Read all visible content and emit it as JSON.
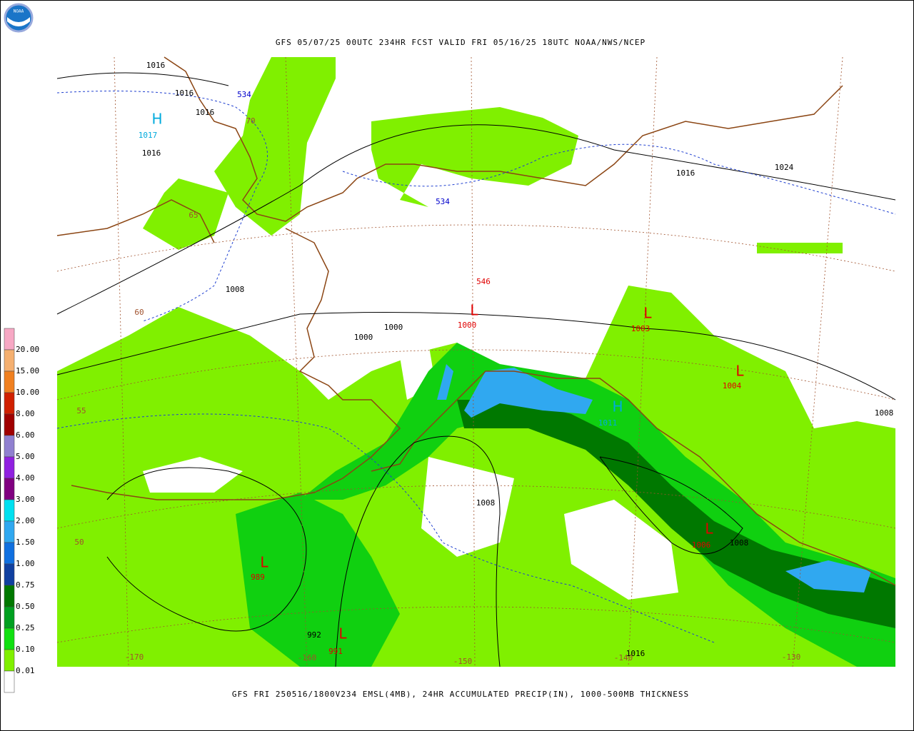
{
  "header": {
    "logo": "NOAA",
    "title": "GFS 05/07/25 00UTC 234HR FCST VALID FRI 05/16/25 18UTC NOAA/NWS/NCEP"
  },
  "legend": {
    "labels": [
      "20.00",
      "15.00",
      "10.00",
      "8.00",
      "6.00",
      "5.00",
      "4.00",
      "3.00",
      "2.00",
      "1.50",
      "1.00",
      "0.75",
      "0.50",
      "0.25",
      "0.10",
      "0.01"
    ],
    "colors": [
      "#f7a8c4",
      "#f5b070",
      "#f08020",
      "#d02000",
      "#a00000",
      "#9080d0",
      "#9020e0",
      "#800080",
      "#00e0f0",
      "#30a8f0",
      "#1070e0",
      "#1040a0",
      "#007800",
      "#00a020",
      "#10e010",
      "#80f000",
      "#ffffff"
    ]
  },
  "map": {
    "labels": [
      {
        "text": "1016",
        "color": "#000000"
      },
      {
        "text": "1016",
        "color": "#000000"
      },
      {
        "text": "1016",
        "color": "#000000"
      },
      {
        "text": "534",
        "color": "#0000cc"
      },
      {
        "text": "H",
        "color": "#00aadd"
      },
      {
        "text": "1017",
        "color": "#00aadd"
      },
      {
        "text": "1016",
        "color": "#000000"
      },
      {
        "text": "70",
        "color": "#a0522d"
      },
      {
        "text": "65",
        "color": "#a0522d"
      },
      {
        "text": "534",
        "color": "#0000cc"
      },
      {
        "text": "1016",
        "color": "#000000"
      },
      {
        "text": "1024",
        "color": "#000000"
      },
      {
        "text": "1008",
        "color": "#000000"
      },
      {
        "text": "60",
        "color": "#a0522d"
      },
      {
        "text": "546",
        "color": "#e00000"
      },
      {
        "text": "L",
        "color": "#e00000"
      },
      {
        "text": "1000",
        "color": "#e00000"
      },
      {
        "text": "L",
        "color": "#e00000"
      },
      {
        "text": "1003",
        "color": "#e00000"
      },
      {
        "text": "1000",
        "color": "#000000"
      },
      {
        "text": "1000",
        "color": "#000000"
      },
      {
        "text": "L",
        "color": "#e00000"
      },
      {
        "text": "1004",
        "color": "#e00000"
      },
      {
        "text": "H",
        "color": "#00aadd"
      },
      {
        "text": "1011",
        "color": "#00aadd"
      },
      {
        "text": "55",
        "color": "#a0522d"
      },
      {
        "text": "1008",
        "color": "#000000"
      },
      {
        "text": "1008",
        "color": "#000000"
      },
      {
        "text": "50",
        "color": "#a0522d"
      },
      {
        "text": "L",
        "color": "#e00000"
      },
      {
        "text": "1006",
        "color": "#e00000"
      },
      {
        "text": "1008",
        "color": "#000000"
      },
      {
        "text": "L",
        "color": "#e00000"
      },
      {
        "text": "989",
        "color": "#e00000"
      },
      {
        "text": "992",
        "color": "#000000"
      },
      {
        "text": "L",
        "color": "#e00000"
      },
      {
        "text": "991",
        "color": "#e00000"
      },
      {
        "text": "-170",
        "color": "#a0522d"
      },
      {
        "text": "-160",
        "color": "#a0522d"
      },
      {
        "text": "-150",
        "color": "#a0522d"
      },
      {
        "text": "-140",
        "color": "#a0522d"
      },
      {
        "text": "1016",
        "color": "#000000"
      },
      {
        "text": "-130",
        "color": "#a0522d"
      }
    ]
  },
  "footer": {
    "caption": "GFS FRI 250516/1800V234 EMSL(4MB), 24HR ACCUMULATED PRECIP(IN), 1000-500MB THICKNESS"
  }
}
